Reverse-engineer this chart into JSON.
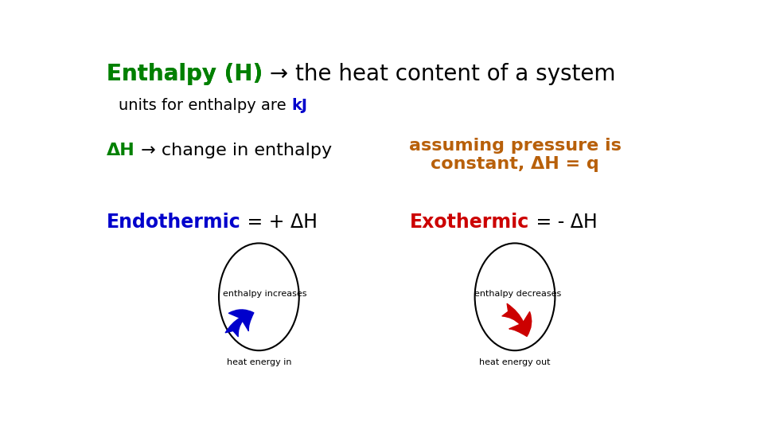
{
  "bg_color": "#ffffff",
  "title_green": "Enthalpy (H)",
  "title_arrow_black": " → the heat content of a system",
  "units_prefix": "units for enthalpy are ",
  "units_kJ": "kJ",
  "dH_green": "ΔH",
  "dH_black": " → change in enthalpy",
  "pressure_text": "assuming pressure is\nconstant, ΔH = q",
  "endo_colored": "Endothermic",
  "endo_black": " = + ΔH",
  "exo_colored": "Exothermic",
  "exo_black": " = - ΔH",
  "endo_inner": "enthalpy increases",
  "endo_below": "heat energy in",
  "exo_inner": "enthalpy decreases",
  "exo_below": "heat energy out",
  "green_color": "#008000",
  "orange_color": "#b8600a",
  "blue_color": "#0000cc",
  "red_color": "#cc0000",
  "black_color": "#000000",
  "fs_title": 20,
  "fs_body": 14,
  "fs_dH": 16,
  "fs_endo": 17,
  "fs_inner": 8,
  "fs_below": 8
}
